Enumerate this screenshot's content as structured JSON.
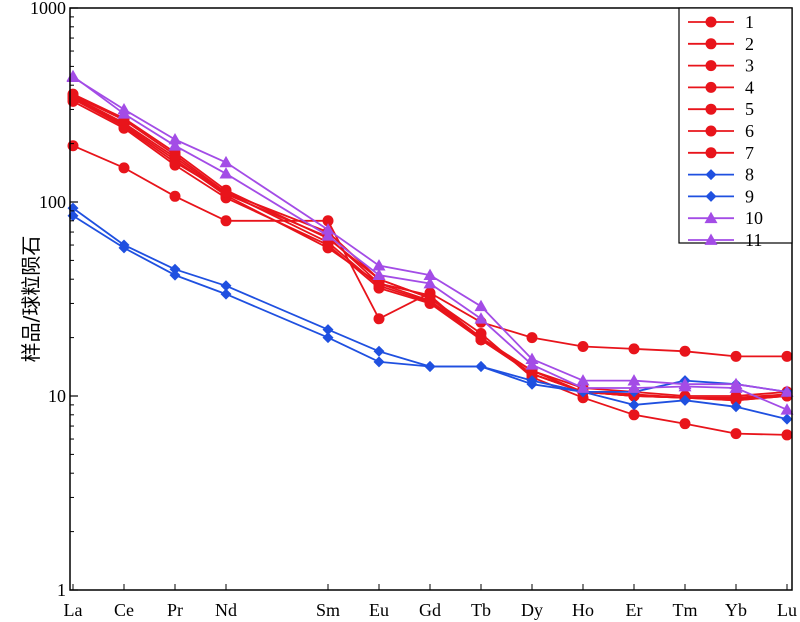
{
  "chart_data": {
    "type": "line",
    "ylabel": "样品/球粒陨石",
    "xlabel": "",
    "yscale": "log",
    "ylim": [
      1,
      1000
    ],
    "y_ticks": [
      "1",
      "10",
      "100",
      "1000"
    ],
    "categories": [
      "La",
      "Ce",
      "Pr",
      "Nd",
      "Sm",
      "Eu",
      "Gd",
      "Tb",
      "Dy",
      "Ho",
      "Er",
      "Tm",
      "Yb",
      "Lu"
    ],
    "category_positions": [
      57,
      58,
      59,
      60,
      62,
      63,
      64,
      65,
      66,
      67,
      68,
      69,
      70,
      71
    ],
    "legend": "top-right",
    "grid": false,
    "colors": {
      "red": "#e8141b",
      "blue": "#1f50e0",
      "purple": "#a34ce6"
    },
    "series": [
      {
        "name": "1",
        "color": "#e8141b",
        "marker": "circle",
        "values": [
          360,
          270,
          180,
          115,
          65,
          40,
          32,
          20,
          13.5,
          11,
          10.5,
          10,
          10,
          10.5
        ]
      },
      {
        "name": "2",
        "color": "#e8141b",
        "marker": "circle",
        "values": [
          350,
          255,
          170,
          110,
          66,
          38,
          33,
          19.5,
          13.5,
          10.5,
          10,
          9.8,
          9.8,
          10.2
        ]
      },
      {
        "name": "3",
        "color": "#e8141b",
        "marker": "circle",
        "values": [
          330,
          240,
          155,
          105,
          60,
          36,
          30,
          19.5,
          13,
          10.5,
          10,
          9.8,
          9.5,
          10
        ]
      },
      {
        "name": "4",
        "color": "#e8141b",
        "marker": "circle",
        "values": [
          345,
          250,
          165,
          108,
          58,
          38,
          31,
          20,
          13,
          10.5,
          10,
          9.8,
          9.5,
          10
        ]
      },
      {
        "name": "5",
        "color": "#e8141b",
        "marker": "circle",
        "values": [
          340,
          245,
          160,
          112,
          62,
          37,
          30.5,
          19.5,
          13,
          10.5,
          10.2,
          9.8,
          9.6,
          10.2
        ]
      },
      {
        "name": "6",
        "color": "#e8141b",
        "marker": "circle",
        "values": [
          195,
          150,
          107,
          80,
          80,
          25,
          34,
          24,
          20,
          18,
          17.5,
          17,
          16,
          16
        ]
      },
      {
        "name": "7",
        "color": "#e8141b",
        "marker": "circle",
        "values": [
          355,
          265,
          175,
          112,
          70,
          40,
          32,
          21,
          12.5,
          9.8,
          8,
          7.2,
          6.4,
          6.3
        ]
      },
      {
        "name": "8",
        "color": "#1f50e0",
        "marker": "diamond",
        "values": [
          93,
          60,
          45,
          37,
          22,
          17,
          14.2,
          14.2,
          12,
          10.5,
          9,
          9.5,
          8.8,
          7.6
        ]
      },
      {
        "name": "9",
        "color": "#1f50e0",
        "marker": "diamond",
        "values": [
          85,
          58,
          42,
          33.5,
          20,
          15,
          14.2,
          14.2,
          11.5,
          10.5,
          10.5,
          12,
          11.5,
          10.5
        ]
      },
      {
        "name": "10",
        "color": "#a34ce6",
        "marker": "triangle",
        "values": [
          440,
          300,
          210,
          160,
          72,
          47,
          42,
          29,
          15.5,
          12,
          12,
          11.5,
          11.5,
          10.5
        ]
      },
      {
        "name": "11",
        "color": "#a34ce6",
        "marker": "triangle",
        "values": [
          445,
          285,
          195,
          140,
          67,
          42,
          38,
          25,
          14.5,
          11,
          11,
          11.2,
          11,
          8.5
        ]
      }
    ]
  }
}
